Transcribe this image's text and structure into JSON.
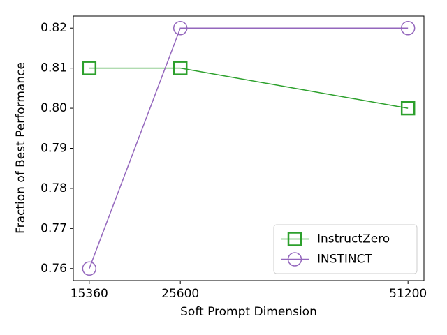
{
  "chart_data": {
    "type": "line",
    "x_label": "Soft Prompt Dimension",
    "y_label": "Fraction of Best Performance",
    "x": [
      15360,
      25600,
      51200
    ],
    "series": [
      {
        "name": "InstructZero",
        "color": "#2ca02c",
        "marker": "square",
        "values": [
          0.81,
          0.81,
          0.8
        ]
      },
      {
        "name": "INSTINCT",
        "color": "#9467bd",
        "marker": "circle",
        "values": [
          0.76,
          0.82,
          0.82
        ]
      }
    ],
    "xlim": [
      13568,
      52992
    ],
    "xticks": [
      15360,
      25600,
      51200
    ],
    "ylim": [
      0.757,
      0.823
    ],
    "yticks": [
      0.76,
      0.77,
      0.78,
      0.79,
      {
        "value": 0.8,
        "label": "0.80"
      },
      0.81,
      0.82
    ],
    "legend": "lower right",
    "grid": false
  }
}
